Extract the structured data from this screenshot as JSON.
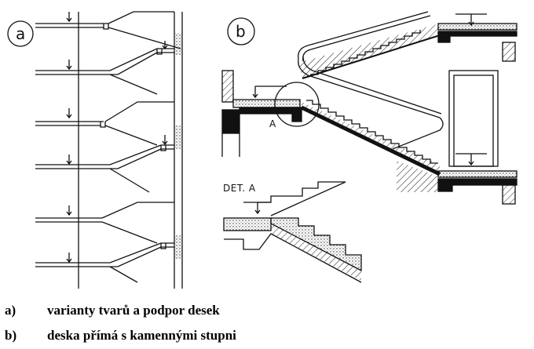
{
  "panels": {
    "a": {
      "label": "a"
    },
    "b": {
      "label": "b",
      "detail_marker": "A",
      "detail_title": "DET. A"
    }
  },
  "captions": [
    {
      "key": "a)",
      "text": "varianty tvarů a podpor desek"
    },
    {
      "key": "b)",
      "text": "deska přímá s kamennými stupni"
    }
  ]
}
